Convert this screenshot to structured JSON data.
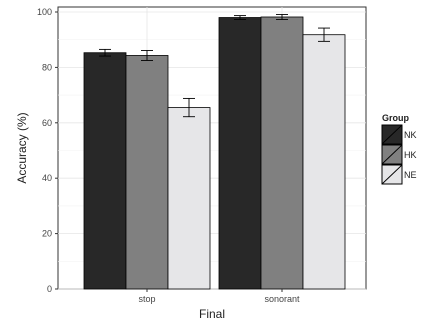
{
  "chart_data": {
    "type": "bar",
    "title": "",
    "xlabel": "Final",
    "ylabel": "Accuracy (%)",
    "ylim": [
      0,
      100
    ],
    "yticks": [
      0,
      20,
      40,
      60,
      80,
      100
    ],
    "categories": [
      "stop",
      "sonorant"
    ],
    "grid": true,
    "legend": {
      "title": "Group",
      "position": "right"
    },
    "error_bars": true,
    "series": [
      {
        "name": "NK",
        "color": "#282828",
        "values": [
          85.3,
          98.0
        ],
        "error": [
          1.2,
          0.7
        ]
      },
      {
        "name": "HK",
        "color": "#808080",
        "values": [
          84.3,
          98.2
        ],
        "error": [
          1.8,
          0.9
        ]
      },
      {
        "name": "NE",
        "color": "#e6e6e8",
        "values": [
          65.5,
          91.8
        ],
        "error": [
          3.3,
          2.4
        ]
      }
    ]
  }
}
